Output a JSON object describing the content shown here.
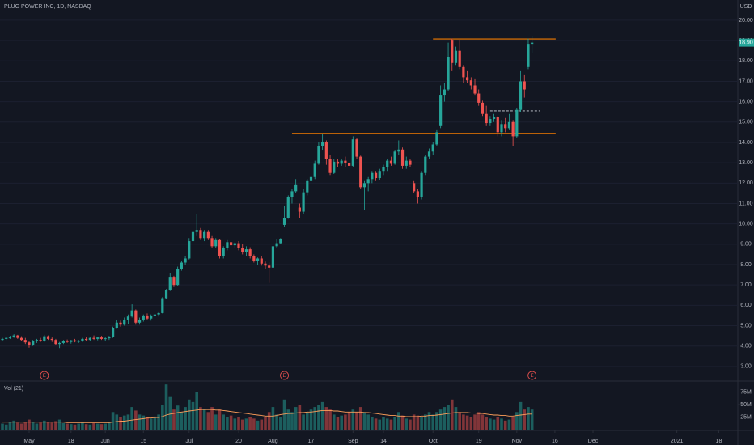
{
  "chart_data": [
    {
      "type": "candlestick",
      "title": "PLUG POWER INC, 1D, NASDAQ",
      "currency": "USD",
      "up_color": "#26a69a",
      "down_color": "#ef5350",
      "grid": true,
      "open": [
        4.3,
        4.35,
        4.4,
        4.45,
        4.52,
        4.4,
        4.3,
        4.18,
        4.05,
        4.25,
        4.3,
        4.25,
        4.48,
        4.35,
        4.3,
        4.1,
        4.15,
        4.25,
        4.2,
        4.28,
        4.22,
        4.25,
        4.35,
        4.3,
        4.4,
        4.35,
        4.42,
        4.35,
        4.38,
        4.45,
        4.9,
        5.15,
        5.05,
        5.3,
        5.45,
        5.75,
        5.15,
        5.3,
        5.5,
        5.35,
        5.5,
        5.55,
        5.62,
        6.35,
        6.75,
        7.4,
        7.0,
        7.8,
        8.1,
        8.3,
        9.15,
        9.6,
        9.7,
        9.3,
        9.6,
        9.3,
        8.9,
        9.2,
        8.4,
        8.8,
        9.1,
        8.95,
        9.05,
        8.8,
        8.6,
        8.75,
        8.4,
        8.2,
        8.3,
        8.05,
        7.95,
        7.85,
        8.9,
        9.05,
        9.95,
        10.3,
        11.3,
        11.6,
        10.8,
        10.6,
        11.55,
        12.1,
        12.3,
        12.95,
        13.8,
        14.0,
        13.2,
        12.5,
        13.05,
        12.95,
        13.1,
        13.0,
        12.85,
        14.15,
        13.3,
        11.8,
        12.0,
        12.2,
        12.5,
        12.25,
        12.6,
        12.8,
        13.1,
        12.95,
        13.55,
        13.65,
        12.85,
        13.1,
        12.0,
        11.6,
        11.3,
        12.5,
        13.3,
        13.55,
        13.9,
        14.8,
        16.3,
        16.6,
        19.0,
        17.9,
        18.5,
        17.7,
        17.2,
        17.05,
        16.8,
        16.4,
        15.95,
        15.4,
        14.95,
        15.15,
        15.25,
        14.5,
        14.9,
        14.7,
        15.0,
        14.3,
        15.6,
        17.0,
        17.7,
        18.8
      ],
      "high": [
        4.4,
        4.45,
        4.5,
        4.58,
        4.55,
        4.48,
        4.4,
        4.25,
        4.3,
        4.35,
        4.4,
        4.55,
        4.52,
        4.42,
        4.35,
        4.2,
        4.3,
        4.32,
        4.3,
        4.35,
        4.3,
        4.4,
        4.45,
        4.42,
        4.52,
        4.45,
        4.5,
        4.45,
        4.5,
        4.95,
        5.3,
        5.25,
        5.4,
        5.55,
        6.05,
        5.8,
        5.4,
        5.55,
        5.6,
        5.55,
        5.65,
        5.7,
        6.4,
        6.8,
        7.6,
        7.45,
        7.9,
        8.2,
        8.4,
        9.3,
        9.8,
        10.5,
        9.8,
        9.7,
        9.7,
        9.4,
        9.3,
        9.25,
        8.9,
        9.2,
        9.2,
        9.1,
        9.15,
        9.0,
        8.9,
        8.85,
        8.5,
        8.35,
        8.4,
        8.15,
        8.1,
        9.0,
        9.25,
        9.3,
        10.9,
        11.4,
        11.7,
        12.2,
        11.0,
        11.7,
        12.2,
        12.5,
        13.1,
        14.0,
        14.4,
        14.1,
        13.4,
        13.2,
        13.2,
        13.2,
        13.3,
        13.2,
        14.3,
        14.2,
        13.35,
        12.1,
        12.3,
        12.6,
        12.6,
        12.7,
        12.9,
        13.2,
        13.3,
        13.6,
        14.1,
        13.75,
        13.3,
        13.2,
        12.1,
        11.7,
        12.6,
        13.4,
        13.7,
        14.0,
        14.6,
        16.8,
        16.9,
        18.9,
        19.1,
        18.7,
        19.0,
        17.8,
        17.5,
        17.2,
        17.1,
        16.6,
        16.05,
        15.8,
        15.3,
        15.4,
        15.3,
        15.1,
        15.2,
        15.4,
        15.1,
        15.7,
        17.5,
        17.3,
        19.1,
        19.2
      ],
      "low": [
        4.25,
        4.3,
        4.35,
        4.4,
        4.35,
        4.25,
        4.1,
        3.92,
        4.0,
        4.15,
        4.2,
        4.2,
        4.3,
        4.2,
        4.05,
        3.9,
        4.1,
        4.15,
        4.12,
        4.18,
        4.15,
        4.2,
        4.25,
        4.25,
        4.3,
        4.28,
        4.3,
        4.25,
        4.3,
        4.4,
        4.85,
        4.95,
        5.0,
        5.1,
        5.4,
        5.05,
        5.05,
        5.2,
        5.3,
        5.25,
        5.4,
        5.45,
        5.6,
        6.3,
        6.7,
        6.9,
        6.95,
        7.7,
        8.0,
        8.25,
        9.0,
        9.4,
        9.2,
        9.15,
        9.2,
        8.8,
        8.8,
        8.3,
        8.3,
        8.7,
        8.85,
        8.8,
        8.7,
        8.5,
        8.4,
        8.3,
        8.1,
        8.0,
        7.95,
        7.8,
        7.1,
        7.8,
        8.8,
        9.0,
        9.85,
        10.25,
        11.0,
        11.5,
        10.3,
        10.5,
        11.4,
        11.8,
        12.2,
        12.9,
        13.6,
        12.9,
        12.4,
        12.45,
        12.8,
        12.85,
        12.8,
        12.7,
        12.8,
        13.2,
        11.7,
        10.7,
        11.6,
        12.0,
        12.1,
        12.15,
        12.4,
        12.6,
        12.85,
        12.9,
        13.4,
        12.7,
        12.7,
        12.8,
        11.5,
        11.0,
        11.2,
        12.4,
        13.2,
        13.4,
        13.8,
        14.7,
        16.0,
        16.5,
        17.5,
        17.8,
        17.6,
        16.9,
        16.9,
        16.6,
        16.3,
        15.8,
        15.3,
        14.8,
        14.8,
        15.0,
        14.3,
        14.3,
        14.5,
        14.6,
        13.8,
        14.2,
        15.5,
        16.2,
        17.6,
        18.4
      ],
      "close": [
        4.35,
        4.4,
        4.42,
        4.52,
        4.4,
        4.3,
        4.18,
        4.05,
        4.25,
        4.3,
        4.25,
        4.48,
        4.35,
        4.3,
        4.1,
        4.15,
        4.25,
        4.2,
        4.28,
        4.22,
        4.25,
        4.35,
        4.3,
        4.4,
        4.35,
        4.42,
        4.35,
        4.38,
        4.45,
        4.9,
        5.15,
        5.05,
        5.3,
        5.45,
        5.75,
        5.15,
        5.3,
        5.5,
        5.35,
        5.5,
        5.55,
        5.62,
        6.35,
        6.75,
        7.4,
        7.0,
        7.8,
        8.1,
        8.3,
        9.15,
        9.6,
        9.7,
        9.3,
        9.6,
        9.3,
        8.9,
        9.2,
        8.4,
        8.8,
        9.1,
        8.95,
        9.05,
        8.8,
        8.6,
        8.75,
        8.4,
        8.2,
        8.3,
        8.05,
        7.95,
        7.85,
        8.9,
        9.05,
        9.25,
        10.3,
        11.3,
        11.6,
        11.9,
        10.6,
        11.55,
        12.1,
        12.3,
        12.95,
        13.8,
        14.0,
        13.2,
        12.5,
        13.05,
        12.95,
        13.1,
        13.0,
        12.85,
        14.15,
        13.3,
        11.8,
        12.0,
        12.2,
        12.5,
        12.25,
        12.6,
        12.8,
        13.1,
        12.95,
        13.55,
        13.65,
        12.85,
        13.1,
        12.9,
        11.6,
        11.3,
        12.5,
        13.3,
        13.55,
        13.9,
        14.5,
        16.3,
        16.6,
        18.2,
        17.9,
        18.5,
        17.7,
        17.2,
        17.05,
        16.8,
        16.4,
        15.95,
        15.4,
        14.95,
        15.15,
        15.25,
        14.5,
        14.9,
        14.7,
        15.0,
        14.3,
        15.6,
        17.0,
        16.6,
        18.8,
        18.9
      ],
      "xlim": [
        -0.64,
        193
      ],
      "ylim": [
        2.32,
        20.99
      ],
      "yticks": [
        {
          "value": 3,
          "label": "3.00"
        },
        {
          "value": 4,
          "label": "4.00"
        },
        {
          "value": 5,
          "label": "5.00"
        },
        {
          "value": 6,
          "label": "6.00"
        },
        {
          "value": 7,
          "label": "7.00"
        },
        {
          "value": 8,
          "label": "8.00"
        },
        {
          "value": 9,
          "label": "9.00"
        },
        {
          "value": 10,
          "label": "10.00"
        },
        {
          "value": 11,
          "label": "11.00"
        },
        {
          "value": 12,
          "label": "12.00"
        },
        {
          "value": 13,
          "label": "13.00"
        },
        {
          "value": 14,
          "label": "14.00"
        },
        {
          "value": 15,
          "label": "15.00"
        },
        {
          "value": 16,
          "label": "16.00"
        },
        {
          "value": 17,
          "label": "17.00"
        },
        {
          "value": 18,
          "label": "18.00"
        },
        {
          "value": 19,
          "label": "19.00"
        },
        {
          "value": 20,
          "label": "20.00"
        }
      ],
      "last_price": {
        "value": 18.9,
        "label": "18.90"
      },
      "events": [
        {
          "x": 11,
          "label": "E"
        },
        {
          "x": 74,
          "label": "E"
        },
        {
          "x": 139,
          "label": "E"
        }
      ],
      "lines": [
        {
          "y": 19.08,
          "x": [
            113,
            145.2
          ],
          "color": "#f57c00",
          "style": "solid"
        },
        {
          "y": 14.44,
          "x": [
            76,
            145.2
          ],
          "color": "#f57c00",
          "style": "solid"
        },
        {
          "y": 15.55,
          "x": [
            128,
            141
          ],
          "color": "#d1d4dc",
          "style": "dashed"
        }
      ]
    },
    {
      "type": "volume",
      "title": "Vol (21)",
      "up_color": "#26a69a",
      "down_color": "#ef5350",
      "ma_color": "#ff9f5a",
      "values": [
        12,
        10,
        15,
        18,
        14,
        12,
        16,
        20,
        15,
        12,
        14,
        18,
        16,
        14,
        17,
        20,
        13,
        12,
        11,
        10,
        12,
        14,
        11,
        10,
        13,
        12,
        11,
        12,
        14,
        35,
        30,
        25,
        28,
        30,
        45,
        38,
        30,
        28,
        25,
        22,
        26,
        30,
        50,
        90,
        65,
        40,
        48,
        35,
        45,
        60,
        55,
        75,
        45,
        40,
        35,
        45,
        30,
        40,
        30,
        25,
        28,
        22,
        25,
        20,
        22,
        25,
        22,
        18,
        20,
        25,
        35,
        45,
        30,
        25,
        60,
        40,
        35,
        45,
        50,
        30,
        35,
        40,
        45,
        50,
        55,
        45,
        40,
        30,
        25,
        28,
        30,
        35,
        40,
        35,
        45,
        35,
        30,
        25,
        22,
        20,
        25,
        22,
        20,
        25,
        35,
        28,
        22,
        20,
        30,
        28,
        25,
        30,
        35,
        30,
        35,
        40,
        45,
        50,
        60,
        45,
        35,
        30,
        28,
        25,
        30,
        35,
        30,
        25,
        22,
        20,
        25,
        22,
        18,
        20,
        25,
        35,
        55,
        40,
        45,
        40
      ],
      "ma_values": [
        15,
        15,
        15,
        15,
        15,
        15,
        15,
        15,
        15,
        15,
        15,
        15,
        15,
        15,
        15,
        15,
        15,
        14,
        14,
        14,
        14,
        14,
        14,
        14,
        14,
        14,
        14,
        14,
        14,
        15,
        16,
        17,
        17,
        18,
        19,
        20,
        21,
        22,
        23,
        23,
        24,
        24,
        26,
        29,
        31,
        32,
        34,
        35,
        36,
        37,
        38,
        39,
        40,
        40,
        40,
        40,
        39,
        39,
        38,
        37,
        36,
        35,
        34,
        33,
        32,
        31,
        30,
        29,
        28,
        27,
        27,
        27,
        28,
        30,
        31,
        32,
        32,
        33,
        34,
        34,
        35,
        35,
        36,
        37,
        38,
        38,
        38,
        37,
        37,
        36,
        35,
        35,
        35,
        35,
        35,
        34,
        34,
        33,
        32,
        31,
        30,
        29,
        28,
        28,
        27,
        27,
        26,
        26,
        26,
        26,
        27,
        27,
        28,
        28,
        29,
        30,
        31,
        32,
        33,
        34,
        34,
        34,
        34,
        33,
        33,
        32,
        32,
        31,
        30,
        29,
        29,
        28,
        28,
        27,
        27,
        28,
        29,
        30,
        31,
        31
      ],
      "xlim": [
        -0.64,
        193
      ],
      "ylim": [
        0,
        93.5
      ],
      "yticks": [
        {
          "value": 25,
          "label": "25M"
        },
        {
          "value": 50,
          "label": "50M"
        },
        {
          "value": 75,
          "label": "75M"
        }
      ],
      "xticks": [
        {
          "value": 7,
          "label": "May"
        },
        {
          "value": 18,
          "label": "18"
        },
        {
          "value": 27,
          "label": "Jun"
        },
        {
          "value": 37,
          "label": "15"
        },
        {
          "value": 49,
          "label": "Jul"
        },
        {
          "value": 62,
          "label": "20"
        },
        {
          "value": 71,
          "label": "Aug"
        },
        {
          "value": 81,
          "label": "17"
        },
        {
          "value": 92,
          "label": "Sep"
        },
        {
          "value": 100,
          "label": "14"
        },
        {
          "value": 113,
          "label": "Oct"
        },
        {
          "value": 125,
          "label": "19"
        },
        {
          "value": 135,
          "label": "Nov"
        },
        {
          "value": 145,
          "label": "16"
        },
        {
          "value": 155,
          "label": "Dec"
        },
        {
          "value": 177,
          "label": "2021"
        },
        {
          "value": 188,
          "label": "18"
        }
      ]
    }
  ]
}
